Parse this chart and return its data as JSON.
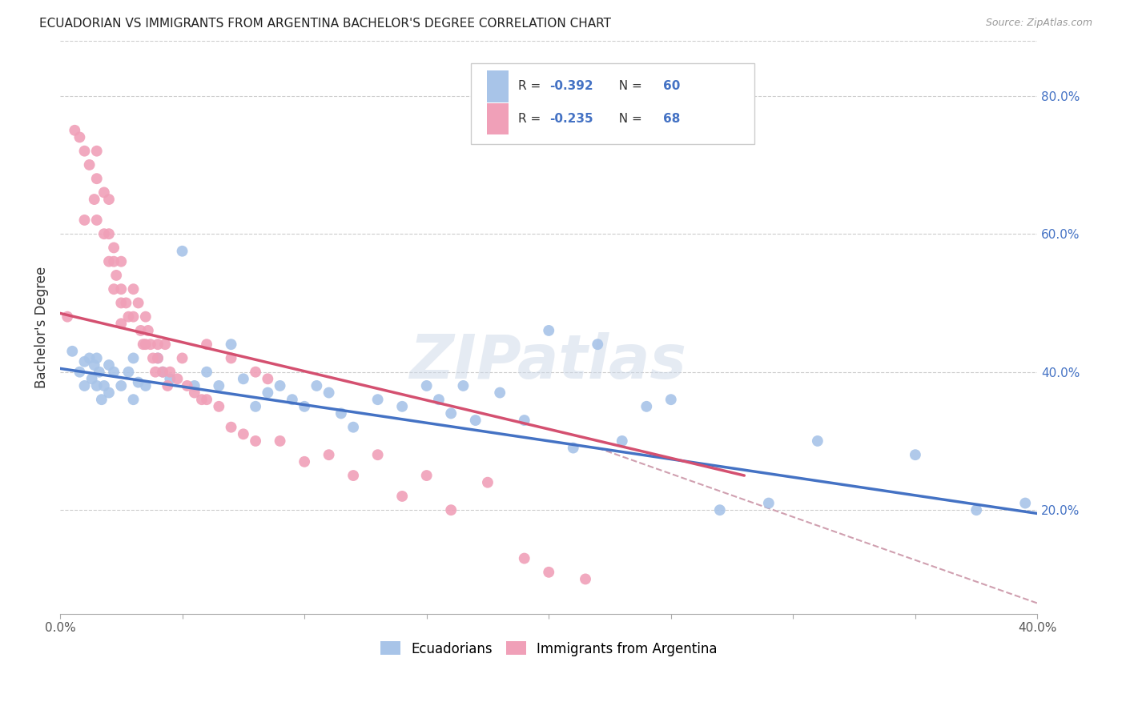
{
  "title": "ECUADORIAN VS IMMIGRANTS FROM ARGENTINA BACHELOR'S DEGREE CORRELATION CHART",
  "source": "Source: ZipAtlas.com",
  "ylabel": "Bachelor's Degree",
  "legend_label_blue": "Ecuadorians",
  "legend_label_pink": "Immigrants from Argentina",
  "legend_r_blue": "-0.392",
  "legend_n_blue": "60",
  "legend_r_pink": "-0.235",
  "legend_n_pink": "68",
  "watermark": "ZIPatlas",
  "blue_color": "#a8c4e8",
  "pink_color": "#f0a0b8",
  "blue_line_color": "#4472c4",
  "pink_line_color": "#d45070",
  "dashed_line_color": "#d0a0b0",
  "legend_r_color": "#4472c4",
  "xlim": [
    0.0,
    0.4
  ],
  "ylim": [
    0.05,
    0.88
  ],
  "blue_scatter_x": [
    0.005,
    0.008,
    0.01,
    0.01,
    0.012,
    0.013,
    0.014,
    0.015,
    0.015,
    0.016,
    0.017,
    0.018,
    0.02,
    0.02,
    0.022,
    0.025,
    0.028,
    0.03,
    0.03,
    0.032,
    0.035,
    0.04,
    0.042,
    0.045,
    0.05,
    0.055,
    0.06,
    0.065,
    0.07,
    0.075,
    0.08,
    0.085,
    0.09,
    0.095,
    0.1,
    0.105,
    0.11,
    0.115,
    0.12,
    0.13,
    0.14,
    0.15,
    0.155,
    0.16,
    0.165,
    0.17,
    0.18,
    0.19,
    0.2,
    0.21,
    0.22,
    0.23,
    0.24,
    0.25,
    0.27,
    0.29,
    0.31,
    0.35,
    0.375,
    0.395
  ],
  "blue_scatter_y": [
    0.43,
    0.4,
    0.415,
    0.38,
    0.42,
    0.39,
    0.41,
    0.42,
    0.38,
    0.4,
    0.36,
    0.38,
    0.41,
    0.37,
    0.4,
    0.38,
    0.4,
    0.42,
    0.36,
    0.385,
    0.38,
    0.42,
    0.4,
    0.39,
    0.575,
    0.38,
    0.4,
    0.38,
    0.44,
    0.39,
    0.35,
    0.37,
    0.38,
    0.36,
    0.35,
    0.38,
    0.37,
    0.34,
    0.32,
    0.36,
    0.35,
    0.38,
    0.36,
    0.34,
    0.38,
    0.33,
    0.37,
    0.33,
    0.46,
    0.29,
    0.44,
    0.3,
    0.35,
    0.36,
    0.2,
    0.21,
    0.3,
    0.28,
    0.2,
    0.21
  ],
  "pink_scatter_x": [
    0.003,
    0.006,
    0.008,
    0.01,
    0.01,
    0.012,
    0.014,
    0.015,
    0.015,
    0.015,
    0.018,
    0.018,
    0.02,
    0.02,
    0.02,
    0.022,
    0.022,
    0.022,
    0.023,
    0.025,
    0.025,
    0.025,
    0.025,
    0.027,
    0.028,
    0.03,
    0.03,
    0.032,
    0.033,
    0.034,
    0.035,
    0.035,
    0.036,
    0.037,
    0.038,
    0.039,
    0.04,
    0.04,
    0.042,
    0.043,
    0.044,
    0.045,
    0.048,
    0.05,
    0.052,
    0.055,
    0.058,
    0.06,
    0.065,
    0.07,
    0.075,
    0.08,
    0.09,
    0.1,
    0.11,
    0.12,
    0.13,
    0.14,
    0.15,
    0.16,
    0.175,
    0.19,
    0.2,
    0.215,
    0.06,
    0.07,
    0.08,
    0.085
  ],
  "pink_scatter_y": [
    0.48,
    0.75,
    0.74,
    0.72,
    0.62,
    0.7,
    0.65,
    0.72,
    0.68,
    0.62,
    0.66,
    0.6,
    0.65,
    0.6,
    0.56,
    0.58,
    0.56,
    0.52,
    0.54,
    0.56,
    0.52,
    0.5,
    0.47,
    0.5,
    0.48,
    0.52,
    0.48,
    0.5,
    0.46,
    0.44,
    0.48,
    0.44,
    0.46,
    0.44,
    0.42,
    0.4,
    0.44,
    0.42,
    0.4,
    0.44,
    0.38,
    0.4,
    0.39,
    0.42,
    0.38,
    0.37,
    0.36,
    0.36,
    0.35,
    0.32,
    0.31,
    0.3,
    0.3,
    0.27,
    0.28,
    0.25,
    0.28,
    0.22,
    0.25,
    0.2,
    0.24,
    0.13,
    0.11,
    0.1,
    0.44,
    0.42,
    0.4,
    0.39
  ],
  "blue_trend_x": [
    0.0,
    0.4
  ],
  "blue_trend_y": [
    0.405,
    0.195
  ],
  "pink_trend_x": [
    0.0,
    0.28
  ],
  "pink_trend_y": [
    0.485,
    0.25
  ],
  "dashed_trend_x": [
    0.22,
    0.4
  ],
  "dashed_trend_y": [
    0.29,
    0.065
  ]
}
